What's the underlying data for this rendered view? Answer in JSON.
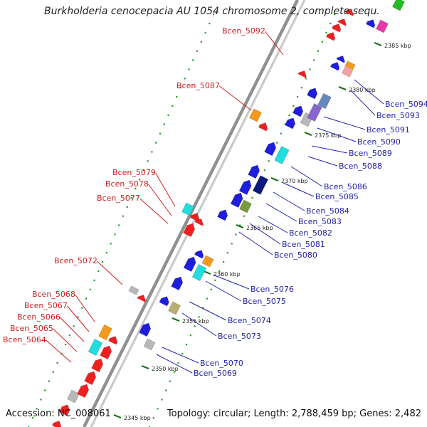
{
  "title": "Burkholderia cenocepacia AU 1054 chromosome 2, complete sequ...",
  "footer": {
    "accession": "Accession: NC_008061",
    "topology": "Topology: circular; Length: 2,788,459 bp; Genes: 2,482"
  },
  "colors": {
    "forward_gene": "#f02020",
    "reverse_gene": "#1e1edc",
    "forward_label": "#cc1f1f",
    "reverse_label": "#2222aa",
    "backbone": "#909090",
    "dots": "#2a9a2a",
    "cyan": "#22dddd",
    "orange": "#f39a1a",
    "grey": "#b8b8b8",
    "khaki": "#b8ae72",
    "olive": "#7a9a40",
    "navy": "#0c1a7c",
    "slate": "#6688bb",
    "violet": "#8866cc",
    "magenta": "#e838a8",
    "green": "#22bb22"
  },
  "scale_labels": [
    "2345 kbp",
    "2350 kbp",
    "2355 kbp",
    "2360 kbp",
    "2365 kbp",
    "2370 kbp",
    "2375 kbp",
    "2380 kbp",
    "2385 kbp"
  ],
  "forward_labels": [
    "Bcen_5064",
    "Bcen_5065",
    "Bcen_5066",
    "Bcen_5067",
    "Bcen_5068",
    "Bcen_5072",
    "Bcen_5077",
    "Bcen_5078",
    "Bcen_5079",
    "Bcen_5087",
    "Bcen_5092"
  ],
  "reverse_labels": [
    "Bcen_5069",
    "Bcen_5070",
    "Bcen_5073",
    "Bcen_5074",
    "Bcen_5075",
    "Bcen_5076",
    "Bcen_5080",
    "Bcen_5081",
    "Bcen_5082",
    "Bcen_5083",
    "Bcen_5084",
    "Bcen_5085",
    "Bcen_5086",
    "Bcen_5088",
    "Bcen_5089",
    "Bcen_5090",
    "Bcen_5091",
    "Bcen_5093",
    "Bcen_5094"
  ]
}
